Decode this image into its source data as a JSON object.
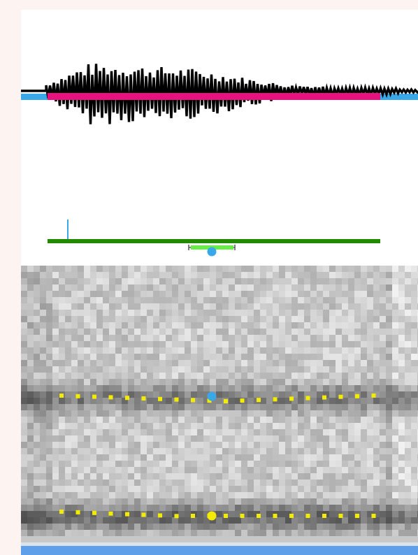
{
  "view": {
    "selection_start_fraction": 0.065,
    "selection_end_fraction": 0.905,
    "cursor_fraction": 0.48,
    "selected_point_fraction": 0.48
  },
  "colors": {
    "page_background": "#fdf3f1",
    "waveform": "#000000",
    "selection_bar": "#e8127f",
    "timeline_bar": "#3aa8e8",
    "interval_tier": "#228a00",
    "point_marker": "#3aa8e8",
    "point_bracket": "#66ee44",
    "formant_dots": "#f4ec00",
    "scrollbar": "#5f9fea"
  },
  "icons": {
    "cursor_point": "circle-marker",
    "pitch_tick": "vertical-tick"
  }
}
